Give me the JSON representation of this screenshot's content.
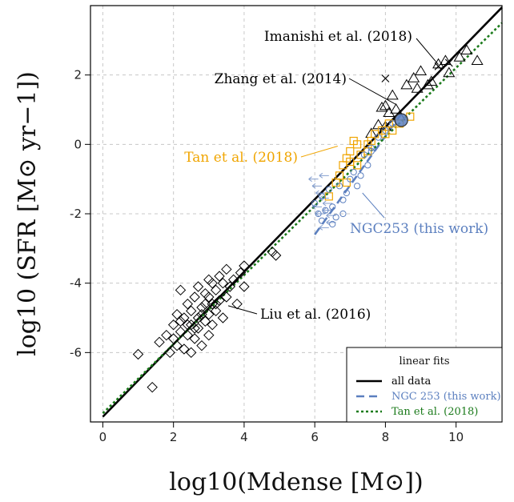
{
  "chart_data": {
    "type": "scatter",
    "xlabel": "log10(Mdense [M⊙])",
    "ylabel": "log10 (SFR [M⊙ yr−1])",
    "xlim": [
      -0.35,
      11.3
    ],
    "ylim": [
      -8.0,
      4.0
    ],
    "xticks": [
      0,
      2,
      4,
      6,
      8,
      10
    ],
    "yticks": [
      -6,
      -4,
      -2,
      0,
      2
    ],
    "grid": true,
    "colors": {
      "black": "#000000",
      "blue": "#5b7fbf",
      "orange": "#f0a500",
      "green": "#1a7a1a"
    },
    "series": [
      {
        "name": "Liu et al. (2016)",
        "marker": "diamond",
        "color": "#000000",
        "points": [
          [
            1.0,
            -6.05
          ],
          [
            1.4,
            -7.0
          ],
          [
            1.6,
            -5.7
          ],
          [
            1.8,
            -5.5
          ],
          [
            1.9,
            -6.0
          ],
          [
            2.0,
            -5.2
          ],
          [
            2.1,
            -5.8
          ],
          [
            2.1,
            -4.9
          ],
          [
            2.2,
            -5.4
          ],
          [
            2.2,
            -4.2
          ],
          [
            2.3,
            -5.9
          ],
          [
            2.3,
            -5.0
          ],
          [
            2.4,
            -5.5
          ],
          [
            2.4,
            -4.6
          ],
          [
            2.5,
            -5.2
          ],
          [
            2.5,
            -4.8
          ],
          [
            2.5,
            -6.0
          ],
          [
            2.6,
            -5.6
          ],
          [
            2.6,
            -4.4
          ],
          [
            2.7,
            -5.0
          ],
          [
            2.7,
            -5.3
          ],
          [
            2.7,
            -4.1
          ],
          [
            2.8,
            -4.7
          ],
          [
            2.8,
            -5.8
          ],
          [
            2.9,
            -5.1
          ],
          [
            2.9,
            -4.3
          ],
          [
            3.0,
            -4.9
          ],
          [
            3.0,
            -5.5
          ],
          [
            3.0,
            -3.9
          ],
          [
            3.1,
            -4.6
          ],
          [
            3.1,
            -5.2
          ],
          [
            3.2,
            -4.2
          ],
          [
            3.2,
            -4.8
          ],
          [
            3.3,
            -3.8
          ],
          [
            3.3,
            -4.5
          ],
          [
            3.4,
            -5.0
          ],
          [
            3.4,
            -4.0
          ],
          [
            3.5,
            -4.4
          ],
          [
            3.5,
            -3.6
          ],
          [
            3.6,
            -4.1
          ],
          [
            3.7,
            -3.9
          ],
          [
            3.8,
            -4.6
          ],
          [
            3.9,
            -3.7
          ],
          [
            4.0,
            -4.1
          ],
          [
            4.0,
            -3.5
          ],
          [
            4.8,
            -3.1
          ],
          [
            4.9,
            -3.2
          ],
          [
            2.0,
            -5.6
          ],
          [
            2.2,
            -5.1
          ],
          [
            2.6,
            -5.3
          ],
          [
            2.8,
            -4.9
          ],
          [
            3.0,
            -4.4
          ],
          [
            3.2,
            -4.6
          ],
          [
            2.4,
            -5.2
          ],
          [
            2.9,
            -4.6
          ],
          [
            3.1,
            -4.0
          ]
        ]
      },
      {
        "name": "Zhang et al. (2014)",
        "marker": "triangle",
        "color": "#000000",
        "points": [
          [
            7.9,
            1.05
          ],
          [
            8.0,
            1.1
          ],
          [
            8.1,
            0.9
          ],
          [
            8.2,
            1.4
          ],
          [
            8.3,
            1.0
          ],
          [
            8.4,
            0.8
          ],
          [
            8.6,
            1.7
          ],
          [
            8.8,
            1.9
          ],
          [
            8.9,
            1.6
          ],
          [
            9.0,
            2.1
          ],
          [
            9.2,
            1.7
          ],
          [
            9.3,
            1.8
          ],
          [
            9.5,
            2.3
          ],
          [
            9.7,
            2.4
          ],
          [
            9.8,
            2.05
          ],
          [
            10.1,
            2.5
          ],
          [
            10.3,
            2.7
          ],
          [
            10.6,
            2.4
          ],
          [
            7.8,
            0.55
          ],
          [
            8.0,
            0.5
          ],
          [
            7.6,
            0.3
          ]
        ]
      },
      {
        "name": "Imanishi et al. (2018)",
        "marker": "x",
        "color": "#000000",
        "points": [
          [
            8.0,
            1.9
          ],
          [
            9.5,
            2.25
          ],
          [
            9.8,
            2.35
          ]
        ]
      },
      {
        "name": "Tan et al. (2018)",
        "marker": "square",
        "color": "#f0a500",
        "points": [
          [
            6.6,
            -1.1
          ],
          [
            6.7,
            -0.9
          ],
          [
            6.8,
            -0.6
          ],
          [
            6.9,
            -0.4
          ],
          [
            7.0,
            -0.5
          ],
          [
            7.0,
            -0.2
          ],
          [
            7.1,
            0.1
          ],
          [
            7.2,
            -0.6
          ],
          [
            7.3,
            -0.3
          ],
          [
            7.5,
            0.0
          ],
          [
            7.6,
            0.1
          ],
          [
            7.7,
            0.3
          ],
          [
            7.9,
            0.4
          ],
          [
            8.0,
            0.3
          ],
          [
            8.2,
            0.4
          ],
          [
            8.4,
            0.6
          ],
          [
            8.7,
            0.8
          ],
          [
            6.9,
            -1.1
          ],
          [
            7.2,
            0.0
          ],
          [
            7.5,
            -0.2
          ],
          [
            8.1,
            0.6
          ],
          [
            6.4,
            -1.5
          ]
        ]
      },
      {
        "name": "NGC253 (this work)",
        "marker": "circle",
        "color": "#5b7fbf",
        "points": [
          [
            6.0,
            -1.7
          ],
          [
            6.1,
            -2.0
          ],
          [
            6.2,
            -1.5
          ],
          [
            6.3,
            -1.9
          ],
          [
            6.4,
            -1.3
          ],
          [
            6.5,
            -1.8
          ],
          [
            6.6,
            -2.1
          ],
          [
            6.7,
            -1.2
          ],
          [
            6.8,
            -1.6
          ],
          [
            6.9,
            -1.4
          ],
          [
            7.0,
            -1.0
          ],
          [
            7.1,
            -0.8
          ],
          [
            7.2,
            -1.2
          ],
          [
            7.4,
            -0.3
          ],
          [
            7.5,
            -0.6
          ],
          [
            7.6,
            -0.1
          ],
          [
            7.8,
            0.2
          ],
          [
            8.0,
            0.4
          ],
          [
            8.2,
            0.6
          ],
          [
            6.5,
            -2.3
          ],
          [
            6.8,
            -2.0
          ],
          [
            7.3,
            -0.9
          ],
          [
            6.2,
            -2.2
          ],
          [
            7.6,
            -0.2
          ]
        ]
      },
      {
        "name": "NGC253 (this work) limits",
        "marker": "arrow-left",
        "color": "#5b7fbf",
        "points": [
          [
            6.1,
            -1.0
          ],
          [
            6.2,
            -1.2
          ],
          [
            6.3,
            -1.4
          ],
          [
            6.4,
            -1.55
          ],
          [
            6.5,
            -1.7
          ],
          [
            6.5,
            -1.9
          ],
          [
            6.6,
            -2.05
          ],
          [
            6.6,
            -2.25
          ],
          [
            6.4,
            -2.4
          ],
          [
            6.3,
            -2.0
          ],
          [
            6.2,
            -1.8
          ],
          [
            6.4,
            -0.9
          ]
        ]
      },
      {
        "name": "NGC253 (this work) total",
        "marker": "big-circle",
        "color": "#5b7fbf",
        "points": [
          [
            8.45,
            0.7
          ]
        ]
      }
    ],
    "fits": {
      "title": "linear fits",
      "lines": [
        {
          "name": "all data",
          "color": "#000000",
          "dash": "solid",
          "x": [
            0,
            11.3
          ],
          "y": [
            -7.85,
            3.95
          ]
        },
        {
          "name": "NGC 253 (this work)",
          "color": "#5b7fbf",
          "dash": "dashed",
          "x": [
            6.0,
            8.5
          ],
          "y": [
            -2.6,
            0.95
          ]
        },
        {
          "name": "Tan et al. (2018)",
          "color": "#1a7a1a",
          "dash": "dotted",
          "x": [
            0,
            11.3
          ],
          "y": [
            -7.75,
            3.5
          ]
        }
      ]
    },
    "annotations": [
      {
        "text": "Imanishi et al. (2018)",
        "color": "#000000",
        "target": [
          9.5,
          2.3
        ]
      },
      {
        "text": "Zhang et al. (2014)",
        "color": "#000000",
        "target": [
          8.3,
          1.15
        ]
      },
      {
        "text": "Tan et al. (2018)",
        "color": "#f0a500",
        "target": [
          6.65,
          -0.05
        ]
      },
      {
        "text": "NGC253 (this work)",
        "color": "#5b7fbf",
        "target": [
          7.35,
          -1.4
        ]
      },
      {
        "text": "Liu et al. (2016)",
        "color": "#000000",
        "target": [
          3.55,
          -4.65
        ]
      }
    ],
    "legend_placement": "bottom-right"
  }
}
